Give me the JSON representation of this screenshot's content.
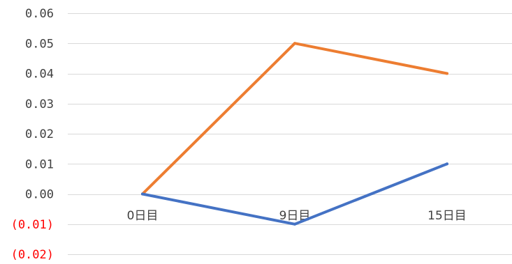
{
  "chart_data": {
    "type": "line",
    "categories": [
      "0日目",
      "9日目",
      "15日目"
    ],
    "series": [
      {
        "values": [
          0.0,
          0.05,
          0.04
        ],
        "color": "#ed7d31"
      },
      {
        "values": [
          0.0,
          -0.01,
          0.01
        ],
        "color": "#4472c4"
      }
    ],
    "ylim": [
      -0.02,
      0.06
    ],
    "y_ticks": [
      {
        "value": 0.06,
        "label": "0.06"
      },
      {
        "value": 0.05,
        "label": "0.05"
      },
      {
        "value": 0.04,
        "label": "0.04"
      },
      {
        "value": 0.03,
        "label": "0.03"
      },
      {
        "value": 0.02,
        "label": "0.02"
      },
      {
        "value": 0.01,
        "label": "0.01"
      },
      {
        "value": 0.0,
        "label": "0.00"
      },
      {
        "value": -0.01,
        "label": "(0.01)"
      },
      {
        "value": -0.02,
        "label": "(0.02)"
      }
    ],
    "negative_label_color": "#ff0000",
    "gridlines": true,
    "legend": "none"
  }
}
